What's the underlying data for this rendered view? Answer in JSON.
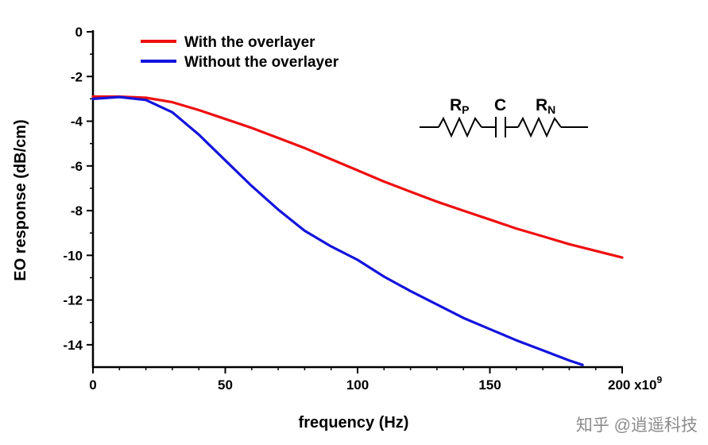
{
  "page": {
    "background": "#ffffff",
    "watermark": "知乎 @逍遥科技"
  },
  "chart_data": {
    "type": "line",
    "title": "",
    "xlabel": "frequency (Hz)",
    "ylabel": "EO response (dB/cm)",
    "xlim": [
      0,
      200
    ],
    "ylim": [
      -15,
      0
    ],
    "x_ticks": [
      0,
      50,
      100,
      150,
      200
    ],
    "x_minor_step": 10,
    "x_unit_multiplier": "x10",
    "x_unit_exponent": "9",
    "y_ticks": [
      0,
      -2,
      -4,
      -6,
      -8,
      -10,
      -12,
      -14
    ],
    "y_minor_step": 1,
    "grid": false,
    "legend_position": "top-left",
    "axis_color": "#000000",
    "series": [
      {
        "name": "With the overlayer",
        "color": "#ee1010",
        "x": [
          0,
          10,
          20,
          30,
          40,
          50,
          60,
          70,
          80,
          90,
          100,
          110,
          120,
          130,
          140,
          150,
          160,
          170,
          180,
          190,
          200
        ],
        "y": [
          -2.9,
          -2.9,
          -2.95,
          -3.15,
          -3.5,
          -3.9,
          -4.3,
          -4.75,
          -5.2,
          -5.7,
          -6.2,
          -6.7,
          -7.15,
          -7.6,
          -8.0,
          -8.4,
          -8.8,
          -9.15,
          -9.5,
          -9.8,
          -10.1
        ]
      },
      {
        "name": "Without the overlayer",
        "color": "#1414dd",
        "x": [
          0,
          10,
          20,
          30,
          40,
          50,
          60,
          70,
          80,
          90,
          100,
          110,
          120,
          130,
          140,
          150,
          160,
          170,
          180,
          185
        ],
        "y": [
          -3.0,
          -2.92,
          -3.05,
          -3.6,
          -4.6,
          -5.75,
          -6.9,
          -7.95,
          -8.9,
          -9.6,
          -10.2,
          -10.95,
          -11.6,
          -12.2,
          -12.8,
          -13.3,
          -13.8,
          -14.25,
          -14.7,
          -14.9
        ]
      }
    ]
  },
  "circuit": {
    "labels": {
      "rp_main": "R",
      "rp_sub": "P",
      "c": "C",
      "rn_main": "R",
      "rn_sub": "N"
    }
  }
}
